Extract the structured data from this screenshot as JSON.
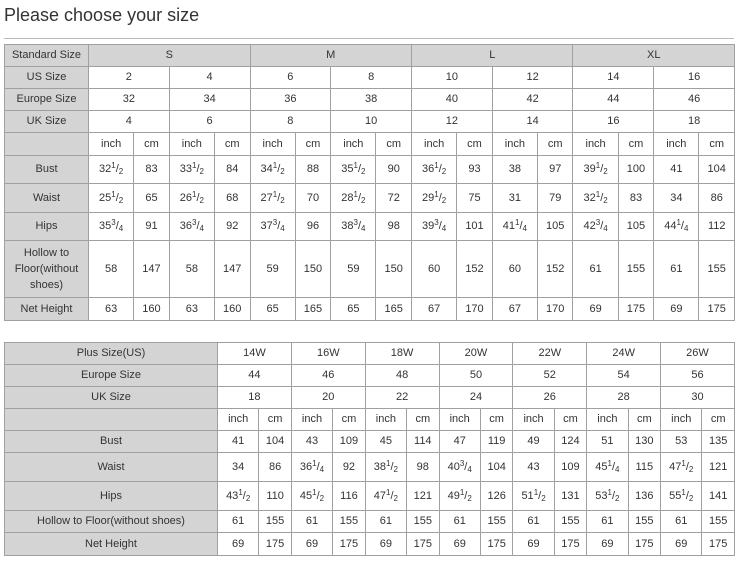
{
  "title": "Please choose your size",
  "standard": {
    "label_standard": "Standard Size",
    "groups": [
      "S",
      "M",
      "L",
      "XL"
    ],
    "label_us": "US Size",
    "us": [
      "2",
      "4",
      "6",
      "8",
      "10",
      "12",
      "14",
      "16"
    ],
    "label_europe": "Europe Size",
    "europe": [
      "32",
      "34",
      "36",
      "38",
      "40",
      "42",
      "44",
      "46"
    ],
    "label_uk": "UK Size",
    "uk": [
      "4",
      "6",
      "8",
      "10",
      "12",
      "14",
      "16",
      "18"
    ],
    "unit_inch": "inch",
    "unit_cm": "cm",
    "measures": [
      {
        "label": "Bust",
        "values": [
          "32 1/2",
          "83",
          "33 1/2",
          "84",
          "34 1/2",
          "88",
          "35 1/2",
          "90",
          "36 1/2",
          "93",
          "38",
          "97",
          "39 1/2",
          "100",
          "41",
          "104"
        ]
      },
      {
        "label": "Waist",
        "values": [
          "25 1/2",
          "65",
          "26 1/2",
          "68",
          "27 1/2",
          "70",
          "28 1/2",
          "72",
          "29 1/2",
          "75",
          "31",
          "79",
          "32 1/2",
          "83",
          "34",
          "86"
        ]
      },
      {
        "label": "Hips",
        "values": [
          "35 3/4",
          "91",
          "36 3/4",
          "92",
          "37 3/4",
          "96",
          "38 3/4",
          "98",
          "39 3/4",
          "101",
          "41 1/4",
          "105",
          "42 3/4",
          "105",
          "44 1/4",
          "112"
        ]
      },
      {
        "label": "Hollow to Floor(without shoes)",
        "values": [
          "58",
          "147",
          "58",
          "147",
          "59",
          "150",
          "59",
          "150",
          "60",
          "152",
          "60",
          "152",
          "61",
          "155",
          "61",
          "155"
        ]
      },
      {
        "label": "Net Height",
        "values": [
          "63",
          "160",
          "63",
          "160",
          "65",
          "165",
          "65",
          "165",
          "67",
          "170",
          "67",
          "170",
          "69",
          "175",
          "69",
          "175"
        ]
      }
    ]
  },
  "plus": {
    "label_plus": "Plus Size(US)",
    "sizes": [
      "14W",
      "16W",
      "18W",
      "20W",
      "22W",
      "24W",
      "26W"
    ],
    "label_europe": "Europe Size",
    "europe": [
      "44",
      "46",
      "48",
      "50",
      "52",
      "54",
      "56"
    ],
    "label_uk": "UK Size",
    "uk": [
      "18",
      "20",
      "22",
      "24",
      "26",
      "28",
      "30"
    ],
    "unit_inch": "inch",
    "unit_cm": "cm",
    "measures": [
      {
        "label": "Bust",
        "values": [
          "41",
          "104",
          "43",
          "109",
          "45",
          "114",
          "47",
          "119",
          "49",
          "124",
          "51",
          "130",
          "53",
          "135"
        ]
      },
      {
        "label": "Waist",
        "values": [
          "34",
          "86",
          "36 1/4",
          "92",
          "38 1/2",
          "98",
          "40 3/4",
          "104",
          "43",
          "109",
          "45 1/4",
          "115",
          "47 1/2",
          "121"
        ]
      },
      {
        "label": "Hips",
        "values": [
          "43 1/2",
          "110",
          "45 1/2",
          "116",
          "47 1/2",
          "121",
          "49 1/2",
          "126",
          "51 1/2",
          "131",
          "53 1/2",
          "136",
          "55 1/2",
          "141"
        ]
      },
      {
        "label": "Hollow to Floor(without shoes)",
        "values": [
          "61",
          "155",
          "61",
          "155",
          "61",
          "155",
          "61",
          "155",
          "61",
          "155",
          "61",
          "155",
          "61",
          "155"
        ]
      },
      {
        "label": "Net Height",
        "values": [
          "69",
          "175",
          "69",
          "175",
          "69",
          "175",
          "69",
          "175",
          "69",
          "175",
          "69",
          "175",
          "69",
          "175"
        ]
      }
    ]
  }
}
